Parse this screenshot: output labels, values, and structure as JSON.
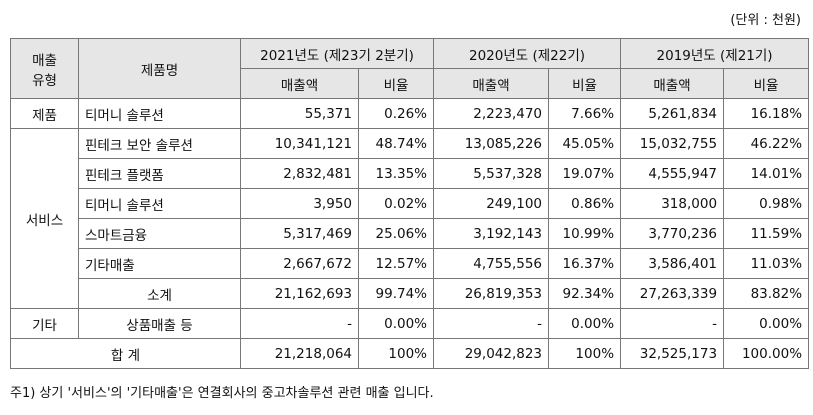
{
  "unit_note": "(단위 : 천원)",
  "table": {
    "header": {
      "type_label": [
        "매출",
        "유형"
      ],
      "product_label": "제품명",
      "years": [
        {
          "title": "2021년도 (제23기 2분기)",
          "columns": [
            "매출액",
            "비율"
          ]
        },
        {
          "title": "2020년도 (제22기)",
          "columns": [
            "매출액",
            "비율"
          ]
        },
        {
          "title": "2019년도 (제21기)",
          "columns": [
            "매출액",
            "비율"
          ]
        }
      ]
    },
    "groups": [
      {
        "type": "제품",
        "rows": [
          [
            "티머니 솔루션",
            "55,371",
            "0.26%",
            "2,223,470",
            "7.66%",
            "5,261,834",
            "16.18%"
          ]
        ]
      },
      {
        "type": "서비스",
        "rows": [
          [
            "핀테크 보안 솔루션",
            "10,341,121",
            "48.74%",
            "13,085,226",
            "45.05%",
            "15,032,755",
            "46.22%"
          ],
          [
            "핀테크 플랫폼",
            "2,832,481",
            "13.35%",
            "5,537,328",
            "19.07%",
            "4,555,947",
            "14.01%"
          ],
          [
            "티머니 솔루션",
            "3,950",
            "0.02%",
            "249,100",
            "0.86%",
            "318,000",
            "0.98%"
          ],
          [
            "스마트금융",
            "5,317,469",
            "25.06%",
            "3,192,143",
            "10.99%",
            "3,770,236",
            "11.59%"
          ],
          [
            "기타매출",
            "2,667,672",
            "12.57%",
            "4,755,556",
            "16.37%",
            "3,586,401",
            "11.03%"
          ],
          [
            "소계",
            "21,162,693",
            "99.74%",
            "26,819,353",
            "92.34%",
            "27,263,339",
            "83.82%"
          ]
        ]
      },
      {
        "type": "기타",
        "rows": [
          [
            "상품매출 등",
            "-",
            "0.00%",
            "-",
            "0.00%",
            "-",
            "0.00%"
          ]
        ]
      }
    ],
    "total": [
      "합 계",
      "21,218,064",
      "100%",
      "29,042,823",
      "100%",
      "32,525,173",
      "100.00%"
    ]
  },
  "footnote": "주1) 상기 '서비스'의 '기타매출'은 연결회사의 중고차솔루션 관련 매출 입니다."
}
